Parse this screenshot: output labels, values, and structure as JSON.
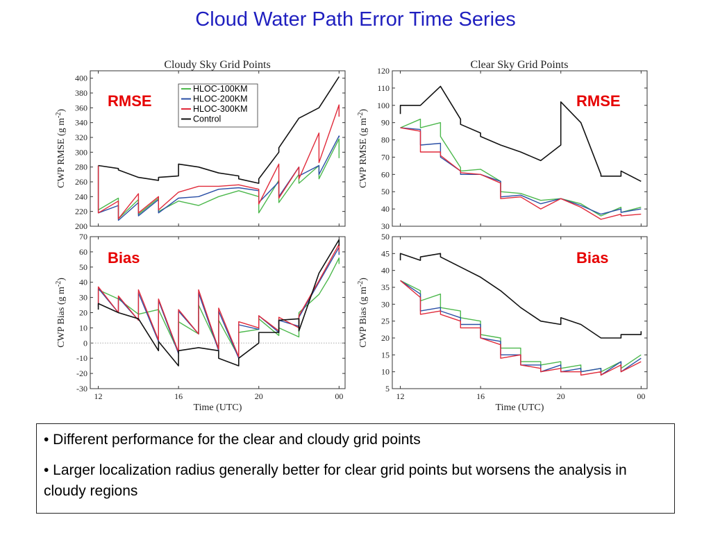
{
  "title": "Cloud Water Path Error Time Series",
  "colors": {
    "hloc100": "#4cb84c",
    "hloc200": "#2a4fa6",
    "hloc300": "#e02a3a",
    "control": "#111111",
    "tag": "#e60000",
    "title": "#1f1fbf"
  },
  "bullets": [
    "• Different performance for the clear and cloudy grid points",
    "• Larger localization radius generally better for clear grid points but worsens the analysis in cloudy regions"
  ],
  "chart_data": [
    {
      "type": "line",
      "title": "Cloudy Sky Grid Points",
      "ylabel": "CWP RMSE (g m-2)",
      "xlabel": "",
      "tag": "RMSE",
      "ylim": [
        200,
        410
      ],
      "yticks": [
        "200",
        "220",
        "240",
        "260",
        "280",
        "300",
        "320",
        "340",
        "360",
        "380",
        "400"
      ],
      "xlim": [
        11.6,
        24.3
      ],
      "xticks": [
        "12",
        "16",
        "20",
        "00"
      ],
      "legend": [
        "HLOC-100KM",
        "HLOC-200KM",
        "HLOC-300KM",
        "Control"
      ],
      "series": [
        {
          "name": "HLOC-100KM",
          "x": [
            12,
            12,
            13,
            13,
            14,
            14,
            15,
            15,
            16,
            17,
            18,
            19,
            20,
            20,
            21,
            21,
            22,
            22,
            23,
            23,
            24,
            24
          ],
          "y": [
            282,
            222,
            238,
            210,
            236,
            216,
            238,
            220,
            234,
            228,
            240,
            248,
            240,
            218,
            262,
            232,
            270,
            258,
            282,
            264,
            318,
            292
          ]
        },
        {
          "name": "HLOC-200KM",
          "x": [
            12,
            12,
            13,
            13,
            14,
            14,
            15,
            15,
            16,
            17,
            18,
            19,
            20,
            20,
            21,
            21,
            22,
            22,
            23,
            23,
            24,
            24
          ],
          "y": [
            282,
            218,
            228,
            208,
            232,
            214,
            236,
            218,
            238,
            240,
            250,
            252,
            248,
            232,
            260,
            240,
            280,
            268,
            282,
            270,
            322,
            320
          ]
        },
        {
          "name": "HLOC-300KM",
          "x": [
            12,
            12,
            13,
            13,
            14,
            14,
            15,
            15,
            16,
            17,
            18,
            19,
            20,
            20,
            21,
            21,
            22,
            22,
            23,
            23,
            24,
            24
          ],
          "y": [
            282,
            218,
            234,
            210,
            244,
            218,
            240,
            222,
            246,
            254,
            254,
            256,
            250,
            230,
            284,
            238,
            280,
            264,
            326,
            286,
            364,
            348
          ]
        },
        {
          "name": "Control",
          "x": [
            12,
            13,
            13,
            14,
            15,
            15,
            16,
            16,
            17,
            18,
            19,
            19,
            20,
            20,
            21,
            21,
            22,
            23,
            24
          ],
          "y": [
            282,
            278,
            276,
            266,
            262,
            266,
            268,
            284,
            280,
            272,
            268,
            264,
            258,
            264,
            300,
            306,
            346,
            360,
            402
          ]
        }
      ]
    },
    {
      "type": "line",
      "title": "Clear Sky Grid Points",
      "ylabel": "CWP RMSE (g m-2)",
      "xlabel": "",
      "tag": "RMSE",
      "ylim": [
        30,
        120
      ],
      "yticks": [
        "30",
        "40",
        "50",
        "60",
        "70",
        "80",
        "90",
        "100",
        "110",
        "120"
      ],
      "xlim": [
        11.6,
        24.3
      ],
      "xticks": [
        "12",
        "16",
        "20",
        "00"
      ],
      "series": [
        {
          "name": "HLOC-100KM",
          "x": [
            12,
            13,
            13,
            14,
            14,
            15,
            15,
            16,
            17,
            17,
            18,
            19,
            20,
            21,
            22,
            23,
            23,
            24
          ],
          "y": [
            87,
            92,
            87,
            90,
            82,
            64,
            62,
            63,
            56,
            50,
            49,
            45,
            46,
            43,
            36,
            41,
            38,
            41
          ]
        },
        {
          "name": "HLOC-200KM",
          "x": [
            12,
            13,
            13,
            14,
            14,
            15,
            15,
            16,
            17,
            17,
            18,
            19,
            20,
            21,
            22,
            23,
            23,
            24
          ],
          "y": [
            87,
            86,
            77,
            78,
            70,
            62,
            60,
            60,
            56,
            47,
            48,
            43,
            46,
            42,
            37,
            40,
            38,
            40
          ]
        },
        {
          "name": "HLOC-300KM",
          "x": [
            12,
            13,
            13,
            14,
            14,
            15,
            15,
            16,
            17,
            17,
            18,
            19,
            20,
            21,
            22,
            23,
            23,
            24
          ],
          "y": [
            87,
            85,
            73,
            73,
            71,
            62,
            61,
            60,
            55,
            46,
            47,
            40,
            46,
            41,
            34,
            37,
            36,
            37
          ]
        },
        {
          "name": "Control",
          "x": [
            12,
            12,
            13,
            14,
            15,
            15,
            16,
            16,
            17,
            18,
            19,
            20,
            20,
            21,
            22,
            22,
            23,
            23,
            24
          ],
          "y": [
            95,
            100,
            100,
            111,
            92,
            89,
            84,
            82,
            77,
            73,
            68,
            77,
            102,
            90,
            60,
            59,
            59,
            62,
            56
          ]
        }
      ]
    },
    {
      "type": "line",
      "title": "",
      "ylabel": "CWP Bias (g m-2)",
      "xlabel": "Time (UTC)",
      "tag": "Bias",
      "ylim": [
        -30,
        70
      ],
      "yticks": [
        "-30",
        "-20",
        "-10",
        "0",
        "10",
        "20",
        "30",
        "40",
        "50",
        "60",
        "70"
      ],
      "xlim": [
        11.6,
        24.3
      ],
      "xticks": [
        "12",
        "16",
        "20",
        "00"
      ],
      "zero_line": true,
      "series": [
        {
          "name": "HLOC-100KM",
          "x": [
            12,
            13,
            14,
            15,
            16,
            16,
            17,
            17,
            18,
            18,
            19,
            19,
            20,
            20,
            21,
            21,
            22,
            22,
            23,
            23.5,
            24,
            24
          ],
          "y": [
            35,
            29,
            19,
            22,
            -6,
            14,
            6,
            25,
            -3,
            15,
            -9,
            7,
            9,
            16,
            5,
            10,
            4,
            20,
            32,
            43,
            56,
            52
          ]
        },
        {
          "name": "HLOC-200KM",
          "x": [
            12,
            12,
            13,
            13,
            14,
            14,
            15,
            15,
            16,
            16,
            17,
            17,
            18,
            18,
            19,
            19,
            20,
            20,
            21,
            21,
            22,
            22,
            23,
            24,
            24
          ],
          "y": [
            24,
            36,
            20,
            30,
            15,
            33,
            1,
            28,
            -7,
            21,
            6,
            33,
            -5,
            21,
            -10,
            12,
            9,
            18,
            7,
            15,
            11,
            17,
            40,
            63,
            58
          ]
        },
        {
          "name": "HLOC-300KM",
          "x": [
            12,
            12,
            13,
            13,
            14,
            14,
            15,
            15,
            16,
            16,
            17,
            17,
            18,
            18,
            19,
            19,
            20,
            20,
            21,
            21,
            22,
            22,
            23,
            24,
            24
          ],
          "y": [
            24,
            37,
            20,
            31,
            15,
            35,
            2,
            29,
            -6,
            22,
            6,
            35,
            -4,
            23,
            -9,
            14,
            10,
            18,
            8,
            17,
            10,
            18,
            41,
            65,
            60
          ]
        },
        {
          "name": "Control",
          "x": [
            12,
            12,
            13,
            14,
            15,
            15,
            16,
            16,
            17,
            18,
            18,
            19,
            19,
            20,
            20,
            21,
            21,
            22,
            22,
            23,
            24,
            24
          ],
          "y": [
            22,
            26,
            20,
            16,
            -5,
            1,
            -15,
            -5,
            -3,
            -5,
            -10,
            -15,
            -10,
            0,
            7,
            7,
            15,
            16,
            8,
            46,
            68,
            64
          ]
        }
      ]
    },
    {
      "type": "line",
      "title": "",
      "ylabel": "CWP Bias (g m-2)",
      "xlabel": "Time (UTC)",
      "tag": "Bias",
      "ylim": [
        5,
        50
      ],
      "yticks": [
        "5",
        "10",
        "15",
        "20",
        "25",
        "30",
        "35",
        "40",
        "45",
        "50"
      ],
      "xlim": [
        11.6,
        24.3
      ],
      "xticks": [
        "12",
        "16",
        "20",
        "00"
      ],
      "series": [
        {
          "name": "HLOC-100KM",
          "x": [
            12,
            13,
            13,
            14,
            14,
            15,
            15,
            16,
            16,
            17,
            17,
            18,
            18,
            19,
            19,
            20,
            20,
            21,
            21,
            22,
            22,
            23,
            23,
            24
          ],
          "y": [
            37,
            34,
            31,
            33,
            29,
            28,
            26,
            25,
            21,
            20,
            17,
            17,
            13,
            13,
            12,
            13,
            11,
            12,
            10,
            11,
            10,
            13,
            11,
            15
          ]
        },
        {
          "name": "HLOC-200KM",
          "x": [
            12,
            13,
            13,
            14,
            14,
            15,
            15,
            16,
            16,
            17,
            17,
            18,
            18,
            19,
            19,
            20,
            20,
            21,
            21,
            22,
            22,
            23,
            23,
            24
          ],
          "y": [
            37,
            33,
            28,
            29,
            28,
            26,
            24,
            24,
            20,
            19,
            15,
            15,
            12,
            12,
            10,
            12,
            10,
            11,
            10,
            11,
            9,
            13,
            10,
            14
          ]
        },
        {
          "name": "HLOC-300KM",
          "x": [
            12,
            13,
            13,
            14,
            14,
            15,
            15,
            16,
            16,
            17,
            17,
            18,
            18,
            19,
            19,
            20,
            20,
            21,
            21,
            22,
            22,
            23,
            23,
            24
          ],
          "y": [
            37,
            32,
            27,
            28,
            27,
            25,
            23,
            23,
            20,
            18,
            14,
            15,
            12,
            11,
            10,
            11,
            10,
            10,
            9,
            10,
            9,
            12,
            10,
            13
          ]
        },
        {
          "name": "Control",
          "x": [
            12,
            12,
            13,
            13,
            14,
            14,
            15,
            15,
            16,
            16,
            17,
            17,
            18,
            19,
            20,
            20,
            21,
            22,
            23,
            23,
            24,
            24
          ],
          "y": [
            43,
            45,
            43,
            44,
            45,
            44,
            41,
            41,
            38,
            38,
            34,
            34,
            29,
            25,
            24,
            26,
            24,
            20,
            20,
            21,
            21,
            22
          ]
        }
      ]
    }
  ]
}
